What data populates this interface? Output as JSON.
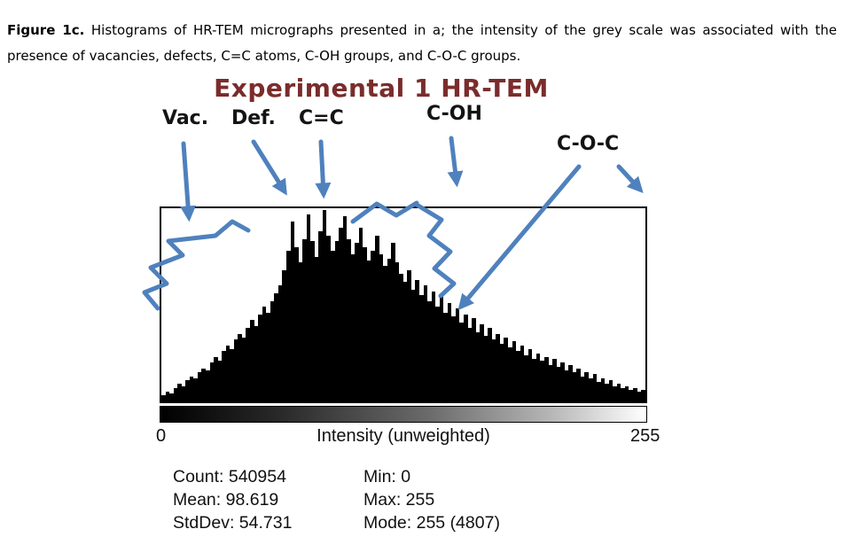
{
  "caption": {
    "label": "Figure 1c.",
    "text": " Histograms of HR-TEM micrographs presented in a; the intensity of the grey scale was associated with the presence of vacancies, defects, C=C atoms, C-OH groups, and C-O-C groups."
  },
  "figure": {
    "title": "Experimental 1 HR-TEM",
    "annotations": [
      "Vac.",
      "Def.",
      "C=C",
      "C-OH",
      "C-O-C"
    ],
    "axis": {
      "min_label": "0",
      "x_label": "Intensity (unweighted)",
      "max_label": "255"
    },
    "stats": {
      "count": "Count: 540954",
      "mean": "Mean: 98.619",
      "stddev": "StdDev: 54.731",
      "min": "Min: 0",
      "max": "Max: 255",
      "mode": "Mode: 255 (4807)"
    },
    "colors": {
      "title": "#7b2c2c",
      "arrow": "#4f81bd",
      "bars": "#000000"
    }
  },
  "chart_data": {
    "type": "bar",
    "title": "Experimental 1 HR-TEM",
    "xlabel": "Intensity (unweighted)",
    "x_range": [
      0,
      255
    ],
    "ylim": [
      0,
      100
    ],
    "legend": "none",
    "grid": false,
    "values": [
      3,
      5,
      4,
      7,
      9,
      8,
      11,
      13,
      12,
      15,
      17,
      16,
      20,
      23,
      21,
      26,
      29,
      27,
      32,
      35,
      33,
      38,
      42,
      39,
      45,
      49,
      46,
      52,
      56,
      60,
      68,
      78,
      93,
      80,
      72,
      84,
      97,
      83,
      75,
      88,
      99,
      86,
      78,
      83,
      90,
      96,
      84,
      76,
      82,
      90,
      80,
      73,
      78,
      86,
      76,
      70,
      74,
      82,
      72,
      66,
      62,
      68,
      58,
      63,
      55,
      60,
      52,
      57,
      49,
      54,
      46,
      51,
      44,
      48,
      41,
      45,
      38,
      43,
      36,
      40,
      34,
      38,
      32,
      35,
      30,
      33,
      28,
      31,
      26,
      29,
      24,
      27,
      22,
      25,
      21,
      23,
      19,
      22,
      18,
      20,
      16,
      19,
      15,
      17,
      13,
      15,
      12,
      14,
      10,
      12,
      9,
      11,
      8,
      9,
      7,
      8,
      6,
      7,
      5,
      6
    ],
    "stats": {
      "count": 540954,
      "mean": 98.619,
      "stddev": 54.731,
      "min": 0,
      "max": 255,
      "mode": "255 (4807)"
    }
  }
}
